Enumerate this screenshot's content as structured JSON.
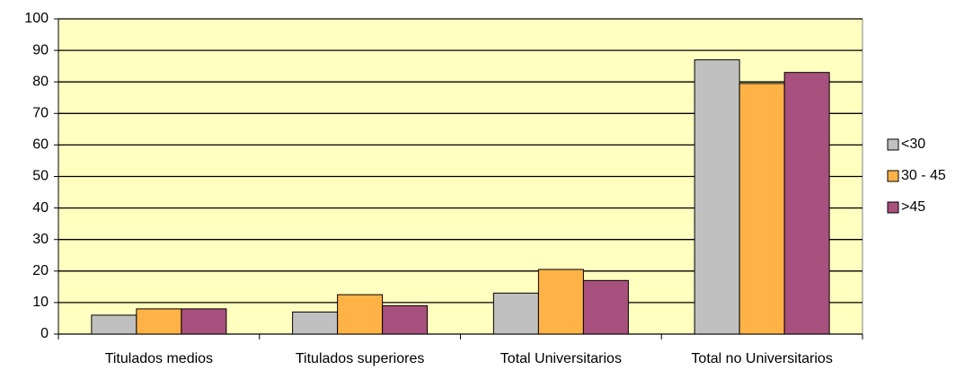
{
  "chart_data": {
    "type": "bar",
    "categories": [
      "Titulados medios",
      "Titulados superiores",
      "Total Universitarios",
      "Total no Universitarios"
    ],
    "series": [
      {
        "name": "<30",
        "color": "#c0c0c0",
        "values": [
          6,
          7,
          13,
          87
        ]
      },
      {
        "name": "30 - 45",
        "color": "#ffb347",
        "values": [
          8,
          12.5,
          20.5,
          79.5
        ]
      },
      {
        "name": ">45",
        "color": "#a8507e",
        "values": [
          8,
          9,
          17,
          83
        ]
      }
    ],
    "ylim": [
      0,
      100
    ],
    "yticks": [
      0,
      10,
      20,
      30,
      40,
      50,
      60,
      70,
      80,
      90,
      100
    ],
    "grid": true,
    "legend": "right",
    "background": "#ffffc0"
  }
}
